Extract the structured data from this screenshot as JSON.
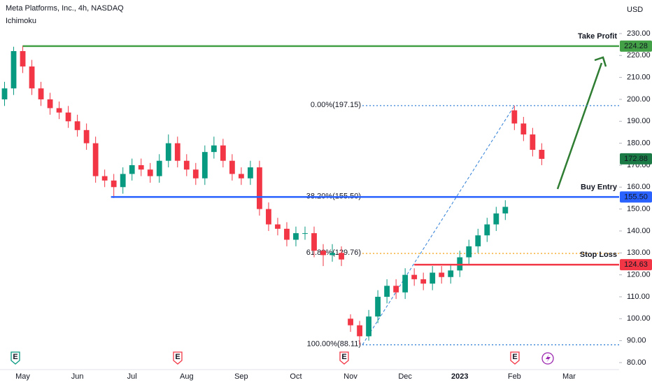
{
  "chart_data": {
    "type": "candlestick",
    "title": "Meta Platforms, Inc., 4h, NASDAQ",
    "subtitle": "Ichimoku",
    "y_axis_label": "USD",
    "categories": [
      null,
      null,
      "May",
      null,
      null,
      null,
      null,
      null,
      "Jun",
      null,
      null,
      null,
      null,
      null,
      "Jul",
      null,
      null,
      null,
      null,
      null,
      "Aug",
      null,
      null,
      null,
      null,
      null,
      "Sep",
      null,
      null,
      null,
      null,
      null,
      "Oct",
      null,
      null,
      null,
      null,
      null,
      "Nov",
      null,
      null,
      null,
      null,
      null,
      "Dec",
      null,
      null,
      null,
      null,
      null,
      "2023",
      null,
      null,
      null,
      null,
      null,
      "Feb",
      null,
      null,
      null,
      null,
      null,
      "Mar",
      null,
      null,
      null,
      null,
      null
    ],
    "open": [
      200,
      205,
      222,
      215,
      205,
      200,
      196,
      194,
      190,
      186,
      180,
      165,
      163,
      160,
      166,
      170,
      168,
      165,
      172,
      180,
      172,
      168,
      164,
      176,
      179,
      172,
      166,
      164,
      169,
      150,
      143,
      141,
      136,
      139,
      139,
      131,
      129,
      130,
      100,
      97,
      92,
      101,
      110,
      115,
      112,
      120,
      118,
      116,
      121,
      119,
      122,
      128,
      133,
      138,
      143,
      148,
      195,
      189,
      184,
      177,
      null,
      null,
      null,
      null,
      null,
      null,
      null,
      null
    ],
    "high": [
      208,
      224,
      224.5,
      218,
      208,
      203,
      199,
      197,
      193,
      189,
      183,
      168,
      166,
      169,
      173,
      173,
      171,
      175,
      184,
      183,
      175,
      171,
      179,
      183,
      182,
      175,
      169,
      172,
      172,
      153,
      146,
      144,
      142,
      142,
      142,
      134,
      134,
      133,
      102,
      99,
      104,
      113,
      118,
      118,
      123,
      123,
      121,
      124,
      124,
      125,
      131,
      136,
      141,
      146,
      151,
      154,
      197.15,
      192,
      187,
      180,
      null,
      null,
      null,
      null,
      null,
      null,
      null,
      null
    ],
    "low": [
      197,
      202,
      212,
      202,
      197,
      193,
      191,
      187,
      183,
      177,
      162,
      160,
      155,
      157,
      163,
      165,
      162,
      162,
      169,
      169,
      165,
      161,
      161,
      173,
      169,
      163,
      161,
      161,
      147,
      140,
      138,
      133,
      133,
      136,
      128,
      124,
      126,
      124,
      94,
      88.11,
      90,
      98,
      107,
      109,
      109,
      115,
      113,
      113,
      116,
      116,
      119,
      125,
      130,
      135,
      140,
      145,
      186,
      181,
      174,
      170,
      null,
      null,
      null,
      null,
      null,
      null,
      null,
      null
    ],
    "close": [
      205,
      222,
      215,
      205,
      200,
      196,
      194,
      190,
      186,
      180,
      165,
      163,
      160,
      166,
      170,
      168,
      165,
      172,
      180,
      172,
      168,
      164,
      176,
      179,
      172,
      166,
      164,
      169,
      150,
      143,
      141,
      136,
      139,
      139,
      131,
      129,
      130,
      127,
      97,
      92,
      101,
      110,
      115,
      112,
      120,
      118,
      116,
      121,
      119,
      122,
      128,
      133,
      138,
      143,
      148,
      151,
      189,
      184,
      177,
      172.88,
      null,
      null,
      null,
      null,
      null,
      null,
      null,
      null
    ],
    "up_color": "#089981",
    "down_color": "#f23645",
    "ylim": [
      76.8,
      245.3
    ],
    "yticks": [
      {
        "value": 80,
        "label": "80.00"
      },
      {
        "value": 90,
        "label": "90.00"
      },
      {
        "value": 100,
        "label": "100.00"
      },
      {
        "value": 110,
        "label": "110.00"
      },
      {
        "value": 120,
        "label": "120.00"
      },
      {
        "value": 130,
        "label": "130.00"
      },
      {
        "value": 140,
        "label": "140.00"
      },
      {
        "value": 150,
        "label": "150.00"
      },
      {
        "value": 160,
        "label": "160.00"
      },
      {
        "value": 170,
        "label": "170.00"
      },
      {
        "value": 180,
        "label": "180.00"
      },
      {
        "value": 190,
        "label": "190.00"
      },
      {
        "value": 200,
        "label": "200.00"
      },
      {
        "value": 210,
        "label": "210.00"
      },
      {
        "value": 220,
        "label": "220.00"
      },
      {
        "value": 230,
        "label": "230.00"
      }
    ],
    "grid": false,
    "levels": [
      {
        "label": "Take Profit",
        "value": 224.28,
        "price_label": "224.28",
        "color": "#43a047"
      },
      {
        "label": "Buy Entry",
        "value": 155.5,
        "price_label": "155.50",
        "color": "#2962ff"
      },
      {
        "label": "Stop Loss",
        "value": 124.63,
        "price_label": "124.63",
        "color": "#f23645"
      }
    ],
    "fib_levels": [
      {
        "label": "0.00%(197.15)",
        "value": 197.15,
        "color": "#2f7fd6"
      },
      {
        "label": "38.20%(155.50)",
        "value": 155.5,
        "color": "#9fb8e6"
      },
      {
        "label": "61.80%(129.76)",
        "value": 129.76,
        "color": "#f5a623"
      },
      {
        "label": "100.00%(88.11)",
        "value": 88.11,
        "color": "#2f7fd6"
      }
    ],
    "events": [
      "E",
      "E",
      "E",
      "E"
    ]
  }
}
